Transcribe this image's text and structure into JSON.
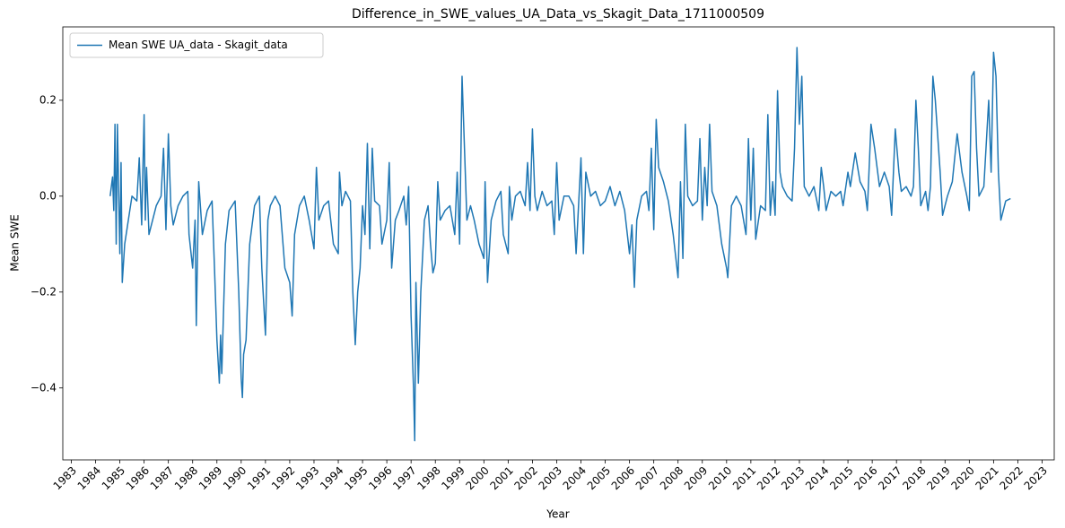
{
  "chart_data": {
    "type": "line",
    "title": "Difference_in_SWE_values_UA_Data_vs_Skagit_Data_1711000509",
    "xlabel": "Year",
    "ylabel": "Mean SWE",
    "legend": "upper left",
    "xlim": [
      1982.65,
      2023.5
    ],
    "ylim": [
      -0.55,
      0.353
    ],
    "xticks": [
      1983,
      1984,
      1985,
      1986,
      1987,
      1988,
      1989,
      1990,
      1991,
      1992,
      1993,
      1994,
      1995,
      1996,
      1997,
      1998,
      1999,
      2000,
      2001,
      2002,
      2003,
      2004,
      2005,
      2006,
      2007,
      2008,
      2009,
      2010,
      2011,
      2012,
      2013,
      2014,
      2015,
      2016,
      2017,
      2018,
      2019,
      2020,
      2021,
      2022,
      2023
    ],
    "yticks": [
      {
        "value": -0.4,
        "label": "−0.4"
      },
      {
        "value": -0.2,
        "label": "−0.2"
      },
      {
        "value": 0,
        "label": "0.0"
      },
      {
        "value": 0.2,
        "label": "0.2"
      }
    ],
    "x": [
      1984.6,
      1984.7,
      1984.75,
      1984.8,
      1984.85,
      1984.9,
      1985.0,
      1985.05,
      1985.1,
      1985.2,
      1985.35,
      1985.5,
      1985.7,
      1985.8,
      1985.9,
      1986.0,
      1986.05,
      1986.1,
      1986.2,
      1986.35,
      1986.5,
      1986.7,
      1986.8,
      1986.9,
      1987.0,
      1987.1,
      1987.2,
      1987.4,
      1987.6,
      1987.8,
      1987.85,
      1988.0,
      1988.1,
      1988.15,
      1988.25,
      1988.4,
      1988.6,
      1988.8,
      1988.9,
      1989.0,
      1989.1,
      1989.15,
      1989.2,
      1989.35,
      1989.5,
      1989.75,
      1989.9,
      1990.0,
      1990.05,
      1990.1,
      1990.2,
      1990.35,
      1990.55,
      1990.75,
      1990.85,
      1991.0,
      1991.1,
      1991.2,
      1991.4,
      1991.6,
      1991.8,
      1992.0,
      1992.1,
      1992.2,
      1992.4,
      1992.6,
      1992.8,
      1993.0,
      1993.1,
      1993.2,
      1993.4,
      1993.6,
      1993.8,
      1994.0,
      1994.05,
      1994.15,
      1994.3,
      1994.5,
      1994.6,
      1994.7,
      1994.8,
      1994.9,
      1995.0,
      1995.1,
      1995.2,
      1995.3,
      1995.4,
      1995.5,
      1995.7,
      1995.8,
      1996.0,
      1996.1,
      1996.2,
      1996.35,
      1996.5,
      1996.7,
      1996.8,
      1996.9,
      1997.0,
      1997.1,
      1997.15,
      1997.2,
      1997.3,
      1997.4,
      1997.55,
      1997.7,
      1997.8,
      1997.9,
      1998.0,
      1998.1,
      1998.2,
      1998.4,
      1998.6,
      1998.8,
      1998.9,
      1999.0,
      1999.1,
      1999.2,
      1999.3,
      1999.45,
      1999.6,
      1999.8,
      2000.0,
      2000.05,
      2000.15,
      2000.3,
      2000.5,
      2000.7,
      2000.8,
      2001.0,
      2001.05,
      2001.15,
      2001.3,
      2001.5,
      2001.7,
      2001.8,
      2001.9,
      2002.0,
      2002.1,
      2002.2,
      2002.4,
      2002.6,
      2002.8,
      2002.9,
      2003.0,
      2003.1,
      2003.3,
      2003.5,
      2003.7,
      2003.8,
      2004.0,
      2004.1,
      2004.2,
      2004.4,
      2004.6,
      2004.8,
      2005.0,
      2005.2,
      2005.4,
      2005.6,
      2005.8,
      2006.0,
      2006.1,
      2006.2,
      2006.3,
      2006.5,
      2006.7,
      2006.8,
      2006.9,
      2007.0,
      2007.1,
      2007.2,
      2007.4,
      2007.6,
      2007.8,
      2008.0,
      2008.1,
      2008.2,
      2008.3,
      2008.4,
      2008.6,
      2008.8,
      2008.9,
      2009.0,
      2009.1,
      2009.2,
      2009.3,
      2009.4,
      2009.6,
      2009.8,
      2010.0,
      2010.05,
      2010.2,
      2010.4,
      2010.6,
      2010.8,
      2010.9,
      2011.0,
      2011.1,
      2011.2,
      2011.4,
      2011.6,
      2011.7,
      2011.8,
      2011.9,
      2012.0,
      2012.1,
      2012.2,
      2012.3,
      2012.5,
      2012.7,
      2012.8,
      2012.9,
      2013.0,
      2013.1,
      2013.2,
      2013.4,
      2013.6,
      2013.8,
      2013.9,
      2014.0,
      2014.1,
      2014.3,
      2014.5,
      2014.7,
      2014.8,
      2015.0,
      2015.1,
      2015.3,
      2015.5,
      2015.7,
      2015.8,
      2015.95,
      2016.1,
      2016.3,
      2016.5,
      2016.7,
      2016.8,
      2016.95,
      2017.1,
      2017.2,
      2017.4,
      2017.6,
      2017.7,
      2017.8,
      2017.9,
      2018.0,
      2018.2,
      2018.3,
      2018.4,
      2018.5,
      2018.6,
      2018.8,
      2018.9,
      2019.1,
      2019.3,
      2019.5,
      2019.7,
      2019.9,
      2020.0,
      2020.1,
      2020.2,
      2020.3,
      2020.4,
      2020.6,
      2020.8,
      2020.9,
      2021.0,
      2021.1,
      2021.2,
      2021.3,
      2021.5,
      2021.7
    ],
    "series": [
      {
        "name": "Mean SWE UA_data - Skagit_data",
        "color": "#1f77b4",
        "values": [
          0,
          0.04,
          -0.03,
          0.15,
          -0.1,
          0.15,
          -0.12,
          0.07,
          -0.18,
          -0.1,
          -0.05,
          0,
          -0.01,
          0.08,
          -0.06,
          0.17,
          -0.05,
          0.06,
          -0.08,
          -0.05,
          -0.02,
          0,
          0.1,
          -0.07,
          0.13,
          -0.02,
          -0.06,
          -0.02,
          0,
          0.01,
          -0.08,
          -0.15,
          -0.05,
          -0.27,
          0.03,
          -0.08,
          -0.03,
          -0.01,
          -0.15,
          -0.3,
          -0.39,
          -0.29,
          -0.37,
          -0.1,
          -0.03,
          -0.01,
          -0.2,
          -0.38,
          -0.42,
          -0.33,
          -0.3,
          -0.1,
          -0.02,
          0,
          -0.15,
          -0.29,
          -0.05,
          -0.02,
          0,
          -0.02,
          -0.15,
          -0.18,
          -0.25,
          -0.08,
          -0.02,
          0,
          -0.05,
          -0.11,
          0.06,
          -0.05,
          -0.02,
          -0.01,
          -0.1,
          -0.12,
          0.05,
          -0.02,
          0.01,
          -0.01,
          -0.2,
          -0.31,
          -0.2,
          -0.15,
          -0.02,
          -0.08,
          0.11,
          -0.11,
          0.1,
          -0.01,
          -0.02,
          -0.1,
          -0.05,
          0.07,
          -0.15,
          -0.05,
          -0.03,
          0,
          -0.06,
          0.02,
          -0.25,
          -0.4,
          -0.51,
          -0.18,
          -0.39,
          -0.2,
          -0.05,
          -0.02,
          -0.1,
          -0.16,
          -0.14,
          0.03,
          -0.05,
          -0.03,
          -0.02,
          -0.08,
          0.05,
          -0.1,
          0.25,
          0.1,
          -0.05,
          -0.02,
          -0.05,
          -0.1,
          -0.13,
          0.03,
          -0.18,
          -0.05,
          -0.01,
          0.01,
          -0.08,
          -0.12,
          0.02,
          -0.05,
          0,
          0.01,
          -0.02,
          0.07,
          -0.03,
          0.14,
          0,
          -0.03,
          0.01,
          -0.02,
          -0.01,
          -0.08,
          0.07,
          -0.05,
          0,
          0,
          -0.02,
          -0.12,
          0.08,
          -0.12,
          0.05,
          0,
          0.01,
          -0.02,
          -0.01,
          0.02,
          -0.02,
          0.01,
          -0.03,
          -0.12,
          -0.06,
          -0.19,
          -0.05,
          0,
          0.01,
          -0.03,
          0.1,
          -0.07,
          0.16,
          0.06,
          0.03,
          -0.01,
          -0.08,
          -0.17,
          0.03,
          -0.13,
          0.15,
          0,
          -0.02,
          -0.01,
          0.12,
          -0.05,
          0.06,
          -0.02,
          0.15,
          0.01,
          -0.02,
          -0.1,
          -0.15,
          -0.17,
          -0.02,
          0,
          -0.02,
          -0.08,
          0.12,
          -0.05,
          0.1,
          -0.09,
          -0.02,
          -0.03,
          0.17,
          -0.04,
          0.03,
          -0.04,
          0.22,
          0.05,
          0.02,
          0,
          -0.01,
          0.1,
          0.31,
          0.15,
          0.25,
          0.02,
          0,
          0.02,
          -0.03,
          0.06,
          0.02,
          -0.03,
          0.01,
          0,
          0.01,
          -0.02,
          0.05,
          0.02,
          0.09,
          0.03,
          0.01,
          -0.03,
          0.15,
          0.1,
          0.02,
          0.05,
          0.02,
          -0.04,
          0.14,
          0.05,
          0.01,
          0.02,
          0,
          0.02,
          0.2,
          0.1,
          -0.02,
          0.01,
          -0.03,
          0.02,
          0.25,
          0.2,
          0.05,
          -0.04,
          0,
          0.03,
          0.13,
          0.05,
          0,
          -0.03,
          0.25,
          0.26,
          0.1,
          0,
          0.02,
          0.2,
          0.05,
          0.3,
          0.25,
          0.05,
          -0.05,
          -0.01,
          -0.005
        ]
      }
    ]
  }
}
